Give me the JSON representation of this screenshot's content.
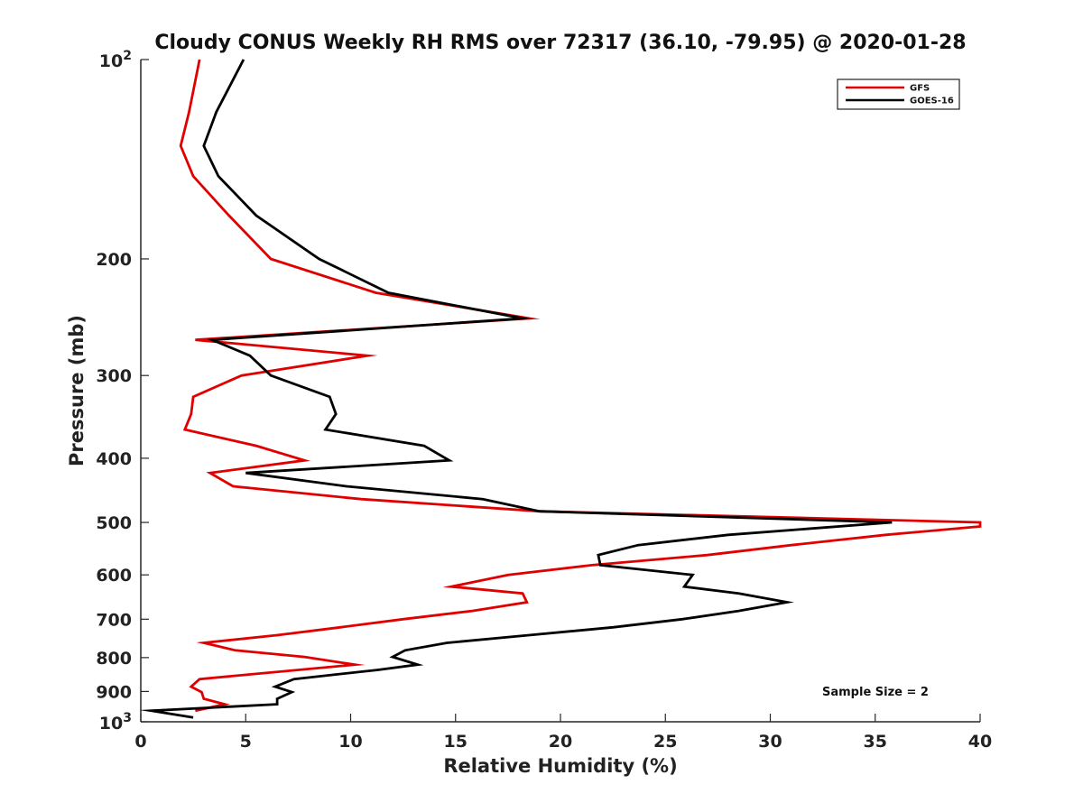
{
  "chart_data": {
    "type": "line",
    "title": "Cloudy CONUS Weekly RH RMS over 72317 (36.10, -79.95) @ 2020-01-28",
    "xlabel": "Relative Humidity (%)",
    "ylabel": "Pressure (mb)",
    "xlim": [
      0,
      40
    ],
    "ylim": [
      100,
      1000
    ],
    "y_scale": "log",
    "y_reversed": true,
    "grid": false,
    "legend_placement": "top-right",
    "x_ticks": [
      "0",
      "5",
      "10",
      "15",
      "20",
      "25",
      "30",
      "35",
      "40"
    ],
    "y_ticks": [
      {
        "value": 100,
        "base": "10",
        "exp": "2"
      },
      {
        "value": 200,
        "label": "200"
      },
      {
        "value": 300,
        "label": "300"
      },
      {
        "value": 400,
        "label": "400"
      },
      {
        "value": 500,
        "label": "500"
      },
      {
        "value": 600,
        "label": "600"
      },
      {
        "value": 700,
        "label": "700"
      },
      {
        "value": 800,
        "label": "800"
      },
      {
        "value": 900,
        "label": "900"
      },
      {
        "value": 1000,
        "base": "10",
        "exp": "3"
      }
    ],
    "annotation": "Sample Size = 2",
    "series": [
      {
        "name": "GFS",
        "color": "#e00000",
        "points": [
          [
            2.8,
            100
          ],
          [
            2.3,
            120
          ],
          [
            1.9,
            135
          ],
          [
            2.5,
            150
          ],
          [
            4.2,
            172
          ],
          [
            6.2,
            200
          ],
          [
            11.2,
            225
          ],
          [
            18.5,
            246
          ],
          [
            2.6,
            265
          ],
          [
            10.8,
            280
          ],
          [
            4.8,
            300
          ],
          [
            2.5,
            323
          ],
          [
            2.4,
            343
          ],
          [
            2.1,
            362
          ],
          [
            5.5,
            383
          ],
          [
            7.8,
            403
          ],
          [
            3.3,
            421
          ],
          [
            4.4,
            441
          ],
          [
            10.5,
            461
          ],
          [
            19.0,
            481
          ],
          [
            40.0,
            500
          ],
          [
            40.0,
            507
          ],
          [
            35.5,
            522
          ],
          [
            31.0,
            541
          ],
          [
            27.0,
            560
          ],
          [
            21.5,
            580
          ],
          [
            17.5,
            600
          ],
          [
            14.8,
            625
          ],
          [
            18.2,
            640
          ],
          [
            18.4,
            660
          ],
          [
            15.8,
            680
          ],
          [
            12.5,
            700
          ],
          [
            9.5,
            720
          ],
          [
            6.5,
            740
          ],
          [
            3.0,
            760
          ],
          [
            4.5,
            780
          ],
          [
            7.8,
            798
          ],
          [
            10.2,
            820
          ],
          [
            2.8,
            862
          ],
          [
            2.4,
            885
          ],
          [
            2.9,
            902
          ],
          [
            3.0,
            923
          ],
          [
            4.0,
            941
          ],
          [
            2.6,
            962
          ]
        ]
      },
      {
        "name": "GOES-16",
        "color": "#000000",
        "points": [
          [
            4.9,
            100
          ],
          [
            3.6,
            120
          ],
          [
            3.0,
            135
          ],
          [
            3.7,
            150
          ],
          [
            5.5,
            172
          ],
          [
            8.5,
            200
          ],
          [
            11.8,
            225
          ],
          [
            18.2,
            246
          ],
          [
            3.4,
            265
          ],
          [
            5.2,
            280
          ],
          [
            6.2,
            300
          ],
          [
            9.0,
            323
          ],
          [
            9.3,
            343
          ],
          [
            8.8,
            362
          ],
          [
            13.5,
            383
          ],
          [
            14.7,
            403
          ],
          [
            5.0,
            421
          ],
          [
            9.8,
            441
          ],
          [
            16.3,
            461
          ],
          [
            19.0,
            481
          ],
          [
            35.8,
            500
          ],
          [
            28.0,
            522
          ],
          [
            23.7,
            541
          ],
          [
            21.8,
            560
          ],
          [
            21.9,
            580
          ],
          [
            26.3,
            600
          ],
          [
            25.9,
            625
          ],
          [
            28.5,
            640
          ],
          [
            30.8,
            660
          ],
          [
            28.5,
            680
          ],
          [
            25.8,
            700
          ],
          [
            22.5,
            720
          ],
          [
            18.5,
            740
          ],
          [
            14.6,
            760
          ],
          [
            12.6,
            780
          ],
          [
            12.0,
            798
          ],
          [
            13.2,
            820
          ],
          [
            11.3,
            835
          ],
          [
            7.3,
            862
          ],
          [
            6.4,
            885
          ],
          [
            7.2,
            902
          ],
          [
            6.5,
            923
          ],
          [
            6.5,
            941
          ],
          [
            0.5,
            962
          ],
          [
            2.5,
            985
          ]
        ]
      }
    ]
  }
}
